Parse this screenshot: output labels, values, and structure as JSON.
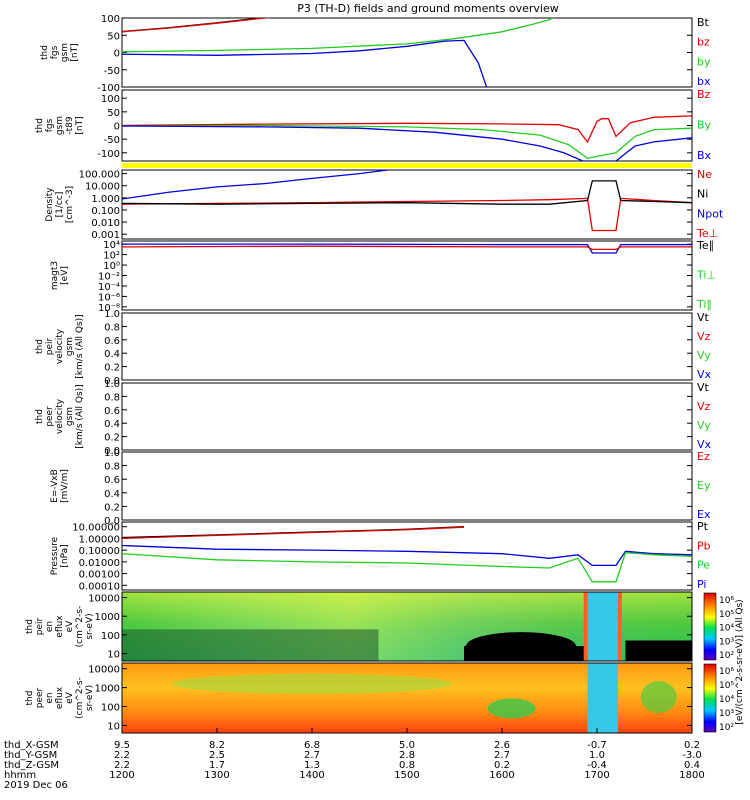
{
  "title": "P3 (TH-D) fields and ground moments overview",
  "footer_date": "2019 Dec 06",
  "colors": {
    "black": "#000000",
    "red": "#e00000",
    "green": "#22cc22",
    "blue": "#0000dd",
    "yellow": "#ffff00"
  },
  "chart_data": [
    {
      "type": "line",
      "ylabel": [
        "thd",
        "fgs",
        "gsm",
        "[nT]"
      ],
      "ylim": [
        -100,
        100
      ],
      "ticks": [
        "100",
        "50",
        "0",
        "-50",
        "-100"
      ],
      "legend": [
        {
          "text": "Bt",
          "color": "black"
        },
        {
          "text": "bz",
          "color": "red"
        },
        {
          "text": "by",
          "color": "green"
        },
        {
          "text": "bx",
          "color": "blue"
        }
      ],
      "series": [
        {
          "name": "Bt",
          "color": "black",
          "x": [
            1200,
            1250,
            1300,
            1330,
            1360
          ],
          "y": [
            61,
            72,
            86,
            95,
            104
          ]
        },
        {
          "name": "bz",
          "color": "red",
          "x": [
            1200,
            1250,
            1300,
            1330,
            1360
          ],
          "y": [
            60,
            71,
            85,
            94,
            103
          ]
        },
        {
          "name": "by",
          "color": "green",
          "x": [
            1200,
            1300,
            1400,
            1500,
            1550,
            1600,
            1630,
            1650,
            1660
          ],
          "y": [
            2,
            6,
            12,
            25,
            40,
            60,
            80,
            95,
            110
          ]
        },
        {
          "name": "bx",
          "color": "blue",
          "x": [
            1200,
            1300,
            1400,
            1450,
            1500,
            1540,
            1560,
            1575,
            1585
          ],
          "y": [
            -5,
            -8,
            -3,
            5,
            18,
            33,
            35,
            -30,
            -110
          ]
        }
      ]
    },
    {
      "type": "line",
      "ylabel": [
        "thd",
        "fgs",
        "gsm",
        "-t89",
        "[nT]"
      ],
      "ylim": [
        -130,
        130
      ],
      "ticks": [
        "100",
        "50",
        "0",
        "-50",
        "-100"
      ],
      "legend": [
        {
          "text": "Bz",
          "color": "red"
        },
        {
          "text": "By",
          "color": "green"
        },
        {
          "text": "Bx",
          "color": "blue"
        }
      ],
      "series": [
        {
          "name": "Bz",
          "color": "red",
          "x": [
            1200,
            1350,
            1500,
            1600,
            1660,
            1680,
            1690,
            1700,
            1705,
            1712,
            1720,
            1735,
            1760,
            1800
          ],
          "y": [
            0,
            5,
            8,
            6,
            3,
            -15,
            -60,
            15,
            25,
            25,
            -40,
            10,
            30,
            35
          ]
        },
        {
          "name": "By",
          "color": "green",
          "x": [
            1200,
            1350,
            1500,
            1580,
            1640,
            1670,
            1690,
            1705,
            1720,
            1740,
            1760,
            1800
          ],
          "y": [
            -2,
            0,
            -5,
            -15,
            -35,
            -70,
            -120,
            -110,
            -100,
            -40,
            -15,
            -10
          ]
        },
        {
          "name": "Bx",
          "color": "blue",
          "x": [
            1200,
            1350,
            1450,
            1530,
            1600,
            1640,
            1665,
            1685,
            1705,
            1720,
            1740,
            1760,
            1800
          ],
          "y": [
            -2,
            -5,
            -10,
            -25,
            -50,
            -75,
            -100,
            -130,
            -130,
            -130,
            -75,
            -60,
            -45
          ]
        }
      ]
    },
    {
      "type": "line",
      "ylabel": [
        "Density",
        "[1/cc]",
        "[cm^-3]"
      ],
      "ticks": [
        "100.000",
        "10.000",
        "1.000",
        "0.100",
        "0.010",
        "0.001"
      ],
      "legend": [
        {
          "text": "Ne",
          "color": "red"
        },
        {
          "text": "Ni",
          "color": "black"
        },
        {
          "text": "Npot",
          "color": "blue"
        },
        {
          "text": "Te⊥",
          "color": "red"
        }
      ],
      "series": [
        {
          "name": "Ne",
          "color": "red",
          "x": [
            1200,
            1300,
            1400,
            1500,
            1600,
            1650,
            1690,
            1695,
            1720,
            1725,
            1760,
            1800
          ],
          "y": [
            0.3,
            0.35,
            0.4,
            0.5,
            0.6,
            0.7,
            0.9,
            0.002,
            0.002,
            0.9,
            0.6,
            0.4
          ]
        },
        {
          "name": "Ni",
          "color": "black",
          "x": [
            1200,
            1300,
            1400,
            1500,
            1600,
            1650,
            1690,
            1695,
            1720,
            1725,
            1760,
            1800
          ],
          "y": [
            0.35,
            0.3,
            0.35,
            0.4,
            0.3,
            0.3,
            0.6,
            25,
            25,
            0.6,
            0.5,
            0.4
          ]
        },
        {
          "name": "Npot",
          "color": "blue",
          "x": [
            1200,
            1250,
            1300,
            1350,
            1400,
            1450,
            1480
          ],
          "y": [
            0.8,
            3,
            8,
            15,
            40,
            100,
            200
          ]
        }
      ]
    },
    {
      "type": "line",
      "ylabel": [
        "magt3",
        "[eV]"
      ],
      "ticks": [
        "10⁴",
        "10²",
        "10⁰",
        "10⁻²",
        "10⁻⁴",
        "10⁻⁶",
        "10⁻⁸"
      ],
      "legend": [
        {
          "text": "Te∥",
          "color": "black"
        },
        {
          "text": "Ti⊥",
          "color": "green"
        },
        {
          "text": "Ti∥",
          "color": "green"
        }
      ],
      "series": [
        {
          "name": "Ti⊥",
          "color": "blue",
          "x": [
            1200,
            1400,
            1600,
            1690,
            1695,
            1720,
            1725,
            1800
          ],
          "y": [
            10000,
            10000,
            8000,
            8000,
            200,
            200,
            8000,
            8000
          ]
        },
        {
          "name": "Te⊥",
          "color": "red",
          "x": [
            1200,
            1400,
            1600,
            1690,
            1695,
            1720,
            1725,
            1800
          ],
          "y": [
            3000,
            4000,
            3000,
            3000,
            1000,
            1000,
            3000,
            3000
          ]
        }
      ]
    },
    {
      "type": "line",
      "ylabel": [
        "thd",
        "peir",
        "velocity",
        "gsm",
        "[km/s (All Qs)]"
      ],
      "ylim": [
        0,
        1
      ],
      "ticks": [
        "1.0",
        "0.8",
        "0.6",
        "0.4",
        "0.2",
        "0.0"
      ],
      "legend": [
        {
          "text": "Vt",
          "color": "black"
        },
        {
          "text": "Vz",
          "color": "red"
        },
        {
          "text": "Vy",
          "color": "green"
        },
        {
          "text": "Vx",
          "color": "blue"
        }
      ],
      "series": []
    },
    {
      "type": "line",
      "ylabel": [
        "thd",
        "peer",
        "velocity",
        "gsm",
        "[km/s (All Qs)]"
      ],
      "ylim": [
        0,
        1
      ],
      "ticks": [
        "1.0",
        "0.8",
        "0.6",
        "0.4",
        "0.2",
        "0.0"
      ],
      "legend": [
        {
          "text": "Vt",
          "color": "black"
        },
        {
          "text": "Vz",
          "color": "red"
        },
        {
          "text": "Vy",
          "color": "green"
        },
        {
          "text": "Vx",
          "color": "blue"
        }
      ],
      "series": []
    },
    {
      "type": "line",
      "ylabel": [
        "E=-VxB",
        "[mV/m]"
      ],
      "ylim": [
        0,
        1
      ],
      "ticks": [
        "1.0",
        "0.8",
        "0.6",
        "0.4",
        "0.2",
        "0.0"
      ],
      "legend": [
        {
          "text": "Ez",
          "color": "red"
        },
        {
          "text": "Ey",
          "color": "green"
        },
        {
          "text": "Ex",
          "color": "blue"
        }
      ],
      "series": []
    },
    {
      "type": "line",
      "ylabel": [
        "Pressure",
        "[nPa]"
      ],
      "ticks": [
        "10.00000",
        "1.00000",
        "0.10000",
        "0.01000",
        "0.00100",
        "0.00010"
      ],
      "legend": [
        {
          "text": "Pt",
          "color": "black"
        },
        {
          "text": "Pb",
          "color": "red"
        },
        {
          "text": "Pe",
          "color": "green"
        },
        {
          "text": "Pi",
          "color": "blue"
        }
      ],
      "series": [
        {
          "name": "Pt",
          "color": "black",
          "x": [
            1200,
            1300,
            1400,
            1500,
            1560
          ],
          "y": [
            1.2,
            2,
            3.5,
            6,
            10
          ]
        },
        {
          "name": "Pb",
          "color": "red",
          "x": [
            1200,
            1300,
            1400,
            1500,
            1560
          ],
          "y": [
            1,
            1.8,
            3.2,
            5.5,
            9
          ]
        },
        {
          "name": "Pi",
          "color": "blue",
          "x": [
            1200,
            1300,
            1400,
            1500,
            1600,
            1650,
            1680,
            1695,
            1720,
            1730,
            1760,
            1800
          ],
          "y": [
            0.25,
            0.12,
            0.1,
            0.08,
            0.05,
            0.02,
            0.04,
            0.005,
            0.005,
            0.08,
            0.05,
            0.04
          ]
        },
        {
          "name": "Pe",
          "color": "green",
          "x": [
            1200,
            1300,
            1400,
            1500,
            1600,
            1650,
            1680,
            1695,
            1720,
            1730,
            1760,
            1800
          ],
          "y": [
            0.05,
            0.015,
            0.01,
            0.008,
            0.004,
            0.003,
            0.02,
            0.0002,
            0.0002,
            0.06,
            0.04,
            0.03
          ]
        }
      ]
    },
    {
      "type": "heatmap",
      "ylabel": [
        "thd",
        "peir",
        "en",
        "eflux",
        "eV",
        "(cm^2-s-",
        "sr-eV)"
      ],
      "ticks": [
        "10000",
        "1000",
        "100",
        "10"
      ],
      "colorbar_ticks": [
        "10⁶",
        "10⁵",
        "10⁴",
        "10³",
        "10²"
      ],
      "colorbar_label": "[eV/(cm^2-s-sr-eV)] (All Qs)"
    },
    {
      "type": "heatmap",
      "ylabel": [
        "thd",
        "peer",
        "en",
        "eflux",
        "eV",
        "(cm^2-s-",
        "sr-eV)"
      ],
      "ticks": [
        "10000",
        "1000",
        "100",
        "10"
      ],
      "colorbar_ticks": [
        "10⁶",
        "10⁵",
        "10⁴",
        "10³",
        "10²"
      ],
      "colorbar_label": "[eV/(cm^2-s-sr-eV)] (All Qs)"
    }
  ],
  "xaxis": {
    "range": [
      1200,
      1800
    ],
    "row_labels": [
      "thd_X-GSM",
      "thd_Y-GSM",
      "thd_Z-GSM",
      "hhmm"
    ],
    "columns": [
      {
        "hhmm": "1200",
        "x": "9.5",
        "y": "2.2",
        "z": "2.2"
      },
      {
        "hhmm": "1300",
        "x": "8.2",
        "y": "2.5",
        "z": "1.7"
      },
      {
        "hhmm": "1400",
        "x": "6.8",
        "y": "2.7",
        "z": "1.3"
      },
      {
        "hhmm": "1500",
        "x": "5.0",
        "y": "2.8",
        "z": "0.8"
      },
      {
        "hhmm": "1600",
        "x": "2.6",
        "y": "2.7",
        "z": "0.2"
      },
      {
        "hhmm": "1700",
        "x": "-0.7",
        "y": "1.0",
        "z": "-0.4"
      },
      {
        "hhmm": "1800",
        "x": "0.2",
        "y": "-3.0",
        "z": "0.4"
      }
    ]
  }
}
